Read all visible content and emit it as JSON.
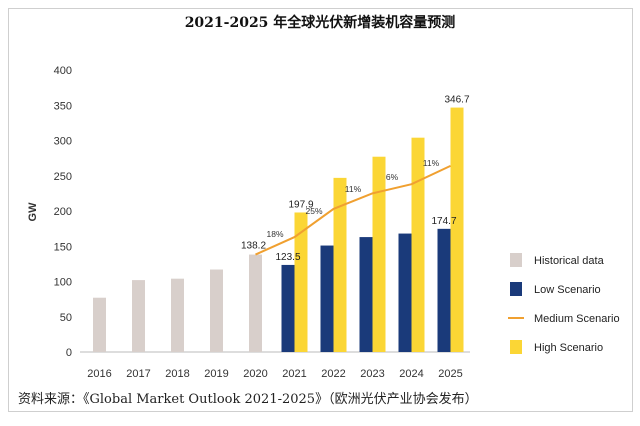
{
  "chart_data": {
    "type": "bar",
    "title": "2021-2025 年全球光伏新增装机容量预测",
    "ylabel": "GW",
    "xlabel": "",
    "ylim": [
      0,
      400
    ],
    "yticks": [
      0,
      50,
      100,
      150,
      200,
      250,
      300,
      350,
      400
    ],
    "categories": [
      "2016",
      "2017",
      "2018",
      "2019",
      "2020",
      "2021",
      "2022",
      "2023",
      "2024",
      "2025"
    ],
    "series": [
      {
        "name": "Historical data",
        "color": "#d8cfcb",
        "type": "bar",
        "values": [
          77,
          102,
          104,
          117,
          138.2,
          null,
          null,
          null,
          null,
          null
        ]
      },
      {
        "name": "Low Scenario",
        "color": "#1a3a7a",
        "type": "bar",
        "values": [
          null,
          null,
          null,
          null,
          null,
          123.5,
          151,
          163,
          168,
          174.7
        ]
      },
      {
        "name": "Medium Scenario",
        "color": "#f0a030",
        "type": "line",
        "values": [
          null,
          null,
          null,
          null,
          138.2,
          163,
          203,
          225,
          238,
          264
        ]
      },
      {
        "name": "High Scenario",
        "color": "#fbd635",
        "type": "bar",
        "values": [
          null,
          null,
          null,
          null,
          null,
          197.9,
          247,
          277,
          304,
          346.7
        ]
      }
    ],
    "bar_labels": [
      {
        "category": "2020",
        "series": "Historical data",
        "text": "138.2"
      },
      {
        "category": "2021",
        "series": "Low Scenario",
        "text": "123.5"
      },
      {
        "category": "2021",
        "series": "High Scenario",
        "text": "197.9"
      },
      {
        "category": "2025",
        "series": "Low Scenario",
        "text": "174.7"
      },
      {
        "category": "2025",
        "series": "High Scenario",
        "text": "346.7"
      }
    ],
    "growth_labels": [
      {
        "between": [
          "2020",
          "2021"
        ],
        "text": "18%"
      },
      {
        "between": [
          "2021",
          "2022"
        ],
        "text": "25%"
      },
      {
        "between": [
          "2022",
          "2023"
        ],
        "text": "11%"
      },
      {
        "between": [
          "2023",
          "2024"
        ],
        "text": "6%"
      },
      {
        "between": [
          "2024",
          "2025"
        ],
        "text": "11%"
      }
    ],
    "legend_position": "right"
  },
  "source_note": "资料来源：《Global Market Outlook 2021-2025》（欧洲光伏产业协会发布）"
}
